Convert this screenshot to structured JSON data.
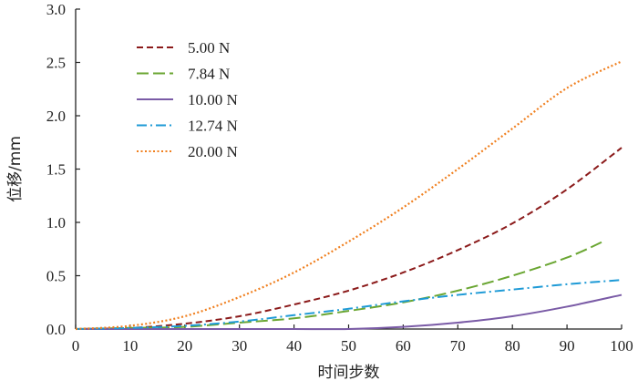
{
  "chart_data": {
    "type": "line",
    "xlabel": "时间步数",
    "ylabel": "位移/mm",
    "xlim": [
      0,
      100
    ],
    "ylim": [
      0,
      3.0
    ],
    "xticks": [
      "0",
      "10",
      "20",
      "30",
      "40",
      "50",
      "60",
      "70",
      "80",
      "90",
      "100"
    ],
    "yticks": [
      "0.0",
      "0.5",
      "1.0",
      "1.5",
      "2.0",
      "2.5",
      "3.0"
    ],
    "grid": false,
    "legend_position": "top-left",
    "series": [
      {
        "name": "5.00 N",
        "color": "#8b1a1a",
        "dash": "dashed",
        "x": [
          0,
          10,
          20,
          30,
          40,
          50,
          60,
          70,
          80,
          90,
          100
        ],
        "y": [
          0.0,
          0.01,
          0.05,
          0.12,
          0.23,
          0.36,
          0.53,
          0.74,
          0.99,
          1.31,
          1.7
        ]
      },
      {
        "name": "7.84 N",
        "color": "#6aa632",
        "dash": "longdash",
        "x": [
          0,
          10,
          20,
          30,
          40,
          50,
          60,
          70,
          80,
          90,
          97
        ],
        "y": [
          0.0,
          0.01,
          0.02,
          0.06,
          0.1,
          0.17,
          0.25,
          0.36,
          0.5,
          0.67,
          0.83
        ]
      },
      {
        "name": "10.00 N",
        "color": "#7a5ba6",
        "dash": "solid",
        "x": [
          0,
          10,
          20,
          30,
          40,
          50,
          60,
          70,
          80,
          90,
          100
        ],
        "y": [
          0.0,
          0.0,
          0.0,
          0.0,
          0.0,
          0.0,
          0.02,
          0.06,
          0.12,
          0.21,
          0.32
        ]
      },
      {
        "name": "12.74 N",
        "color": "#1e9ad6",
        "dash": "dashdot",
        "x": [
          0,
          10,
          20,
          30,
          40,
          50,
          60,
          70,
          80,
          90,
          100
        ],
        "y": [
          0.0,
          0.01,
          0.03,
          0.07,
          0.13,
          0.19,
          0.26,
          0.32,
          0.37,
          0.42,
          0.46
        ]
      },
      {
        "name": "20.00 N",
        "color": "#f07f1e",
        "dash": "dotted",
        "x": [
          0,
          10,
          20,
          30,
          40,
          50,
          60,
          70,
          80,
          90,
          100
        ],
        "y": [
          0.0,
          0.03,
          0.12,
          0.3,
          0.53,
          0.82,
          1.14,
          1.5,
          1.88,
          2.26,
          2.51
        ]
      }
    ]
  }
}
